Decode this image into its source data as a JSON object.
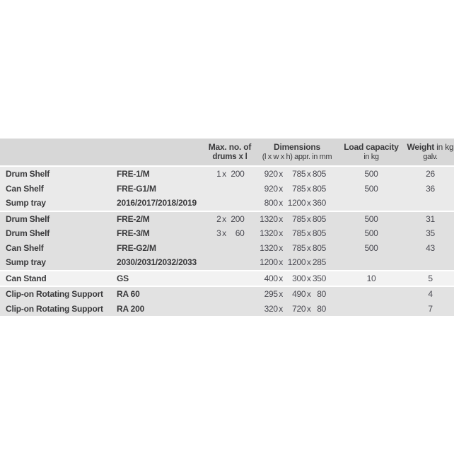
{
  "table": {
    "dim_separator": "x",
    "header": {
      "drums": {
        "line1": "Max. no. of",
        "line2": "drums x l"
      },
      "dimensions": {
        "line1": "Dimensions",
        "line2": "(l x w x h) appr. in mm"
      },
      "load": {
        "line1": "Load capacity",
        "line2": "in kg"
      },
      "weight": {
        "line1_bold": "Weight",
        "line1_rest": "in kg",
        "line2": "galv."
      }
    },
    "rows": [
      {
        "name": "Drum Shelf",
        "model": "FRE-1/M",
        "drums_qty": "1",
        "drums_vol": "200",
        "dim_l": "920",
        "dim_w": "785",
        "dim_h": "805",
        "load": "500",
        "weight": "26",
        "band": "a"
      },
      {
        "name": "Can Shelf",
        "model": "FRE-G1/M",
        "drums_qty": "",
        "drums_vol": "",
        "dim_l": "920",
        "dim_w": "785",
        "dim_h": "805",
        "load": "500",
        "weight": "36",
        "band": "a"
      },
      {
        "name": "Sump tray",
        "model": "2016/2017/2018/2019",
        "drums_qty": "",
        "drums_vol": "",
        "dim_l": "800",
        "dim_w": "1200",
        "dim_h": "360",
        "load": "",
        "weight": "",
        "band": "a"
      },
      {
        "name": "Drum Shelf",
        "model": "FRE-2/M",
        "drums_qty": "2",
        "drums_vol": "200",
        "dim_l": "1320",
        "dim_w": "785",
        "dim_h": "805",
        "load": "500",
        "weight": "31",
        "band": "b"
      },
      {
        "name": "Drum Shelf",
        "model": "FRE-3/M",
        "drums_qty": "3",
        "drums_vol": "60",
        "dim_l": "1320",
        "dim_w": "785",
        "dim_h": "805",
        "load": "500",
        "weight": "35",
        "band": "b"
      },
      {
        "name": "Can Shelf",
        "model": "FRE-G2/M",
        "drums_qty": "",
        "drums_vol": "",
        "dim_l": "1320",
        "dim_w": "785",
        "dim_h": "805",
        "load": "500",
        "weight": "43",
        "band": "b"
      },
      {
        "name": "Sump tray",
        "model": "2030/2031/2032/2033",
        "drums_qty": "",
        "drums_vol": "",
        "dim_l": "1200",
        "dim_w": "1200",
        "dim_h": "285",
        "load": "",
        "weight": "",
        "band": "b"
      },
      {
        "name": "Can Stand",
        "model": "GS",
        "drums_qty": "",
        "drums_vol": "",
        "dim_l": "400",
        "dim_w": "300",
        "dim_h": "350",
        "load": "10",
        "weight": "5",
        "band": "c"
      },
      {
        "name": "Clip-on Rotating Support",
        "model": "RA 60",
        "drums_qty": "",
        "drums_vol": "",
        "dim_l": "295",
        "dim_w": "490",
        "dim_h": "80",
        "load": "",
        "weight": "4",
        "band": "d"
      },
      {
        "name": "Clip-on Rotating Support",
        "model": "RA 200",
        "drums_qty": "",
        "drums_vol": "",
        "dim_l": "320",
        "dim_w": "720",
        "dim_h": "80",
        "load": "",
        "weight": "7",
        "band": "d"
      }
    ],
    "colors": {
      "header_bg": "#d7d7d7",
      "band_a": "#eaeaea",
      "band_b": "#e0e0e0",
      "band_c": "#f2f2f2",
      "band_d": "#e2e2e2",
      "separator": "#ffffff",
      "text_dark": "#3a3a3c",
      "text_value": "#4a4a52"
    }
  }
}
